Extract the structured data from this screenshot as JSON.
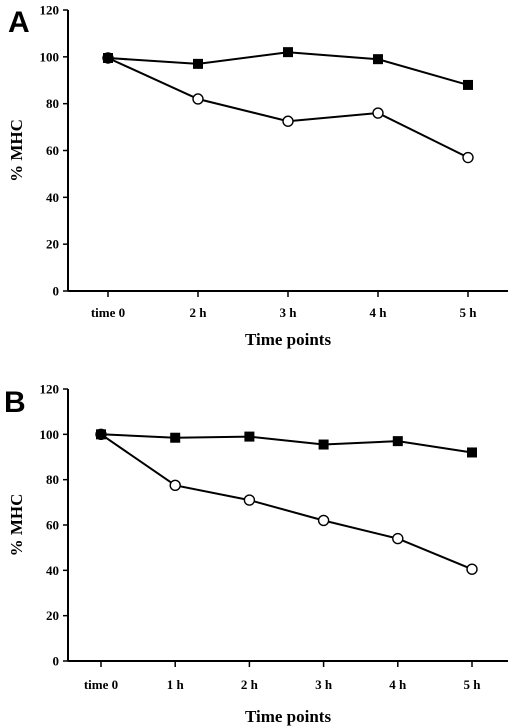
{
  "chart_data": [
    {
      "type": "line",
      "panel_label": "A",
      "categories": [
        "time 0",
        "2 h",
        "3 h",
        "4 h",
        "5 h"
      ],
      "xlabel": "Time points",
      "ylabel": "% MHC",
      "ylim": [
        0,
        120
      ],
      "yticks": [
        0,
        20,
        40,
        60,
        80,
        100,
        120
      ],
      "series": [
        {
          "marker": "filled-square",
          "values": [
            99.5,
            97,
            102,
            99,
            88
          ]
        },
        {
          "marker": "open-circle",
          "values": [
            99.5,
            82,
            72.5,
            76,
            57
          ]
        }
      ],
      "legend": "none",
      "grid": false
    },
    {
      "type": "line",
      "panel_label": "B",
      "categories": [
        "time 0",
        "1 h",
        "2 h",
        "3 h",
        "4 h",
        "5 h"
      ],
      "xlabel": "Time points",
      "ylabel": "% MHC",
      "ylim": [
        0,
        120
      ],
      "yticks": [
        0,
        20,
        40,
        60,
        80,
        100,
        120
      ],
      "series": [
        {
          "marker": "filled-square",
          "values": [
            100,
            98.5,
            99,
            95.5,
            97,
            92
          ]
        },
        {
          "marker": "open-circle",
          "values": [
            100,
            77.5,
            71,
            62,
            54,
            40.5
          ]
        }
      ],
      "legend": "none",
      "grid": false
    }
  ]
}
